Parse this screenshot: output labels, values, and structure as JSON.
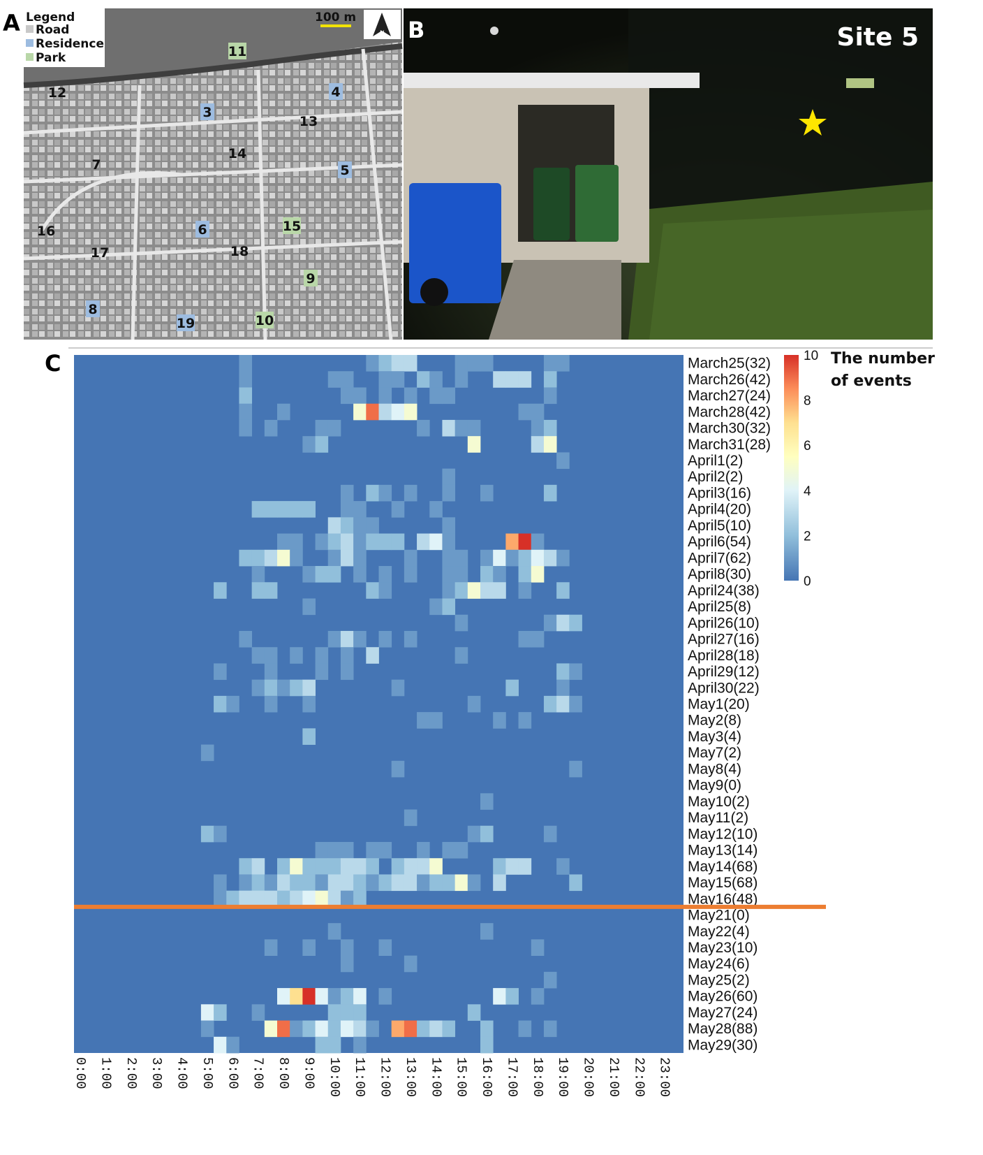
{
  "panels": {
    "a": "A",
    "b": "B",
    "c": "C"
  },
  "map": {
    "legend_title": "Legend",
    "legend_items": [
      {
        "label": "Road",
        "color": "#c8c8c8"
      },
      {
        "label": "Residence",
        "color": "#9dbce0"
      },
      {
        "label": "Park",
        "color": "#b9d7a8"
      }
    ],
    "scale_text": "100 m",
    "north_label": "N",
    "sites": [
      {
        "id": "3",
        "type": "Residence"
      },
      {
        "id": "4",
        "type": "Residence"
      },
      {
        "id": "5",
        "type": "Residence"
      },
      {
        "id": "6",
        "type": "Residence"
      },
      {
        "id": "7",
        "type": "Road"
      },
      {
        "id": "8",
        "type": "Residence"
      },
      {
        "id": "9",
        "type": "Park"
      },
      {
        "id": "10",
        "type": "Park"
      },
      {
        "id": "11",
        "type": "Park"
      },
      {
        "id": "12",
        "type": "Road"
      },
      {
        "id": "13",
        "type": "Road"
      },
      {
        "id": "14",
        "type": "Road"
      },
      {
        "id": "15",
        "type": "Park"
      },
      {
        "id": "16",
        "type": "Road"
      },
      {
        "id": "17",
        "type": "Road"
      },
      {
        "id": "18",
        "type": "Road"
      },
      {
        "id": "19",
        "type": "Residence"
      }
    ]
  },
  "photo": {
    "site_label": "Site 5"
  },
  "chart_data": {
    "type": "heatmap",
    "x_hours": [
      "0:00",
      "1:00",
      "2:00",
      "3:00",
      "4:00",
      "5:00",
      "6:00",
      "7:00",
      "8:00",
      "9:00",
      "10:00",
      "11:00",
      "12:00",
      "13:00",
      "14:00",
      "15:00",
      "16:00",
      "17:00",
      "18:00",
      "19:00",
      "20:00",
      "21:00",
      "22:00",
      "23:00"
    ],
    "bins_per_hour": 2,
    "rows": [
      {
        "label": "March25(32)",
        "cells": {
          "13": 1,
          "23": 1,
          "24": 2,
          "25": 3,
          "26": 3,
          "30": 1,
          "31": 1,
          "32": 1,
          "37": 1,
          "38": 1
        }
      },
      {
        "label": "March26(42)",
        "cells": {
          "13": 1,
          "20": 1,
          "21": 1,
          "24": 1,
          "25": 1,
          "27": 2,
          "28": 1,
          "30": 1,
          "33": 3,
          "34": 3,
          "35": 3,
          "37": 2
        }
      },
      {
        "label": "March27(24)",
        "cells": {
          "13": 2,
          "21": 1,
          "22": 1,
          "24": 1,
          "26": 1,
          "28": 1,
          "29": 1,
          "37": 1
        }
      },
      {
        "label": "March28(42)",
        "cells": {
          "13": 1,
          "16": 1,
          "22": 5,
          "23": 9,
          "24": 3,
          "25": 4,
          "26": 5,
          "35": 1,
          "36": 1
        }
      },
      {
        "label": "March30(32)",
        "cells": {
          "13": 1,
          "15": 1,
          "19": 1,
          "20": 1,
          "27": 1,
          "29": 3,
          "30": 1,
          "31": 1,
          "36": 1,
          "37": 2
        }
      },
      {
        "label": "March31(28)",
        "cells": {
          "18": 1,
          "19": 2,
          "31": 5,
          "36": 3,
          "37": 5
        }
      },
      {
        "label": "April1(2)",
        "cells": {
          "38": 1
        }
      },
      {
        "label": "April2(2)",
        "cells": {
          "29": 1
        }
      },
      {
        "label": "April3(16)",
        "cells": {
          "21": 1,
          "23": 2,
          "24": 1,
          "26": 1,
          "29": 1,
          "32": 1,
          "37": 2
        }
      },
      {
        "label": "April4(20)",
        "cells": {
          "14": 2,
          "15": 2,
          "16": 2,
          "17": 2,
          "18": 2,
          "21": 1,
          "22": 1,
          "25": 1,
          "28": 1
        }
      },
      {
        "label": "April5(10)",
        "cells": {
          "20": 3,
          "21": 2,
          "22": 1,
          "23": 1,
          "29": 1
        }
      },
      {
        "label": "April6(54)",
        "cells": {
          "16": 1,
          "17": 1,
          "19": 1,
          "20": 2,
          "21": 3,
          "22": 1,
          "23": 2,
          "24": 2,
          "25": 2,
          "27": 3,
          "28": 4,
          "29": 1,
          "34": 8,
          "35": 10,
          "36": 1
        }
      },
      {
        "label": "April7(62)",
        "cells": {
          "13": 2,
          "14": 2,
          "15": 3,
          "16": 5,
          "17": 1,
          "20": 1,
          "21": 3,
          "22": 1,
          "26": 1,
          "29": 1,
          "30": 1,
          "32": 1,
          "33": 4,
          "34": 1,
          "35": 2,
          "36": 4,
          "37": 3,
          "38": 1
        }
      },
      {
        "label": "April8(30)",
        "cells": {
          "14": 1,
          "18": 1,
          "19": 2,
          "20": 2,
          "22": 1,
          "24": 1,
          "26": 1,
          "29": 1,
          "30": 1,
          "32": 2,
          "33": 1,
          "35": 2,
          "36": 5
        }
      },
      {
        "label": "April24(38)",
        "cells": {
          "11": 2,
          "14": 2,
          "15": 2,
          "23": 2,
          "24": 1,
          "29": 1,
          "30": 2,
          "31": 5,
          "32": 3,
          "33": 3,
          "35": 1,
          "38": 2
        }
      },
      {
        "label": "April25(8)",
        "cells": {
          "18": 1,
          "28": 1,
          "29": 2
        }
      },
      {
        "label": "April26(10)",
        "cells": {
          "30": 1,
          "37": 1,
          "38": 3,
          "39": 2
        }
      },
      {
        "label": "April27(16)",
        "cells": {
          "13": 1,
          "20": 1,
          "21": 3,
          "22": 1,
          "24": 1,
          "26": 1,
          "35": 1,
          "36": 1
        }
      },
      {
        "label": "April28(18)",
        "cells": {
          "14": 1,
          "15": 1,
          "17": 1,
          "19": 1,
          "21": 1,
          "23": 3,
          "30": 1
        }
      },
      {
        "label": "April29(12)",
        "cells": {
          "11": 1,
          "15": 1,
          "19": 1,
          "21": 1,
          "38": 2,
          "39": 1
        }
      },
      {
        "label": "April30(22)",
        "cells": {
          "14": 1,
          "15": 2,
          "16": 1,
          "17": 2,
          "18": 3,
          "25": 1,
          "34": 2,
          "38": 1
        }
      },
      {
        "label": "May1(20)",
        "cells": {
          "11": 2,
          "12": 1,
          "15": 1,
          "18": 1,
          "31": 1,
          "37": 2,
          "38": 3,
          "39": 1
        }
      },
      {
        "label": "May2(8)",
        "cells": {
          "27": 1,
          "28": 1,
          "33": 1,
          "35": 1
        }
      },
      {
        "label": "May3(4)",
        "cells": {
          "18": 2
        }
      },
      {
        "label": "May7(2)",
        "cells": {
          "10": 1
        }
      },
      {
        "label": "May8(4)",
        "cells": {
          "25": 1,
          "39": 1
        }
      },
      {
        "label": "May9(0)",
        "cells": {}
      },
      {
        "label": "May10(2)",
        "cells": {
          "32": 1
        }
      },
      {
        "label": "May11(2)",
        "cells": {
          "26": 1
        }
      },
      {
        "label": "May12(10)",
        "cells": {
          "10": 2,
          "11": 1,
          "31": 1,
          "32": 2,
          "37": 1
        }
      },
      {
        "label": "May13(14)",
        "cells": {
          "19": 1,
          "20": 1,
          "21": 1,
          "23": 1,
          "24": 1,
          "27": 1,
          "29": 1,
          "30": 1
        }
      },
      {
        "label": "May14(68)",
        "cells": {
          "13": 2,
          "14": 3,
          "16": 2,
          "17": 5,
          "18": 2,
          "19": 2,
          "20": 2,
          "21": 3,
          "22": 3,
          "23": 2,
          "25": 2,
          "26": 3,
          "27": 3,
          "28": 5,
          "33": 2,
          "34": 3,
          "35": 3,
          "38": 1
        }
      },
      {
        "label": "May15(68)",
        "cells": {
          "11": 1,
          "13": 1,
          "14": 2,
          "15": 1,
          "16": 3,
          "17": 2,
          "18": 2,
          "19": 1,
          "20": 3,
          "21": 3,
          "22": 2,
          "23": 1,
          "24": 2,
          "25": 3,
          "26": 3,
          "27": 1,
          "28": 2,
          "29": 2,
          "30": 5,
          "31": 1,
          "33": 3,
          "39": 2
        }
      },
      {
        "label": "May16(48)",
        "cells": {
          "11": 1,
          "12": 2,
          "13": 3,
          "14": 3,
          "15": 3,
          "16": 2,
          "17": 3,
          "18": 4,
          "19": 5,
          "20": 3,
          "21": 1,
          "22": 2
        }
      },
      {
        "label": "May21(0)",
        "cells": {}
      },
      {
        "label": "May22(4)",
        "cells": {
          "20": 1,
          "32": 1
        }
      },
      {
        "label": "May23(10)",
        "cells": {
          "15": 1,
          "18": 1,
          "21": 1,
          "24": 1,
          "36": 1
        }
      },
      {
        "label": "May24(6)",
        "cells": {
          "21": 1,
          "26": 1
        }
      },
      {
        "label": "May25(2)",
        "cells": {
          "37": 1
        }
      },
      {
        "label": "May26(60)",
        "cells": {
          "16": 4,
          "17": 7,
          "18": 10,
          "19": 4,
          "20": 1,
          "21": 2,
          "22": 4,
          "24": 1,
          "33": 4,
          "34": 2,
          "36": 1
        }
      },
      {
        "label": "May27(24)",
        "cells": {
          "10": 4,
          "11": 2,
          "14": 1,
          "20": 2,
          "21": 2,
          "22": 2,
          "31": 2
        }
      },
      {
        "label": "May28(88)",
        "cells": {
          "10": 1,
          "15": 5,
          "16": 9,
          "17": 1,
          "18": 2,
          "19": 4,
          "20": 2,
          "21": 4,
          "22": 3,
          "23": 1,
          "25": 8,
          "26": 9,
          "27": 2,
          "28": 3,
          "29": 2,
          "32": 2,
          "35": 1,
          "37": 1
        }
      },
      {
        "label": "May29(30)",
        "cells": {
          "11": 4,
          "12": 1,
          "19": 2,
          "20": 2,
          "22": 1,
          "32": 2
        }
      }
    ],
    "divider_after_row": "May16(48)",
    "color_scale": {
      "min": 0,
      "max": 10,
      "ticks": [
        "0",
        "2",
        "4",
        "6",
        "8",
        "10"
      ],
      "stops": [
        "#4575b4",
        "#91bfdb",
        "#e0f3f8",
        "#ffffbf",
        "#fee090",
        "#fc8d59",
        "#d73027"
      ],
      "title_lines": [
        "The number",
        "of events"
      ]
    },
    "divider_color": "#ec7d31"
  }
}
